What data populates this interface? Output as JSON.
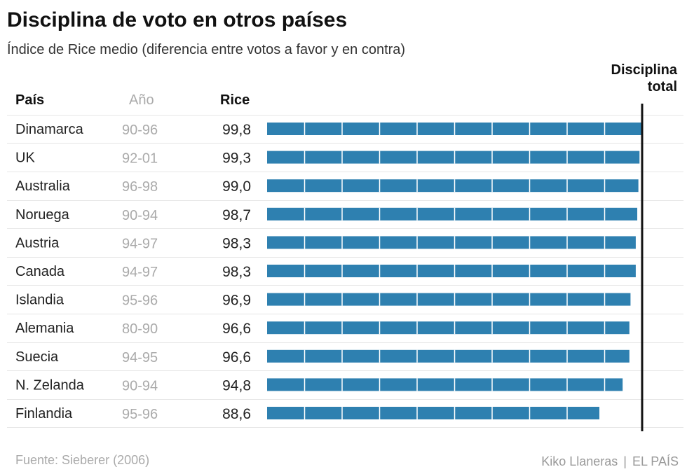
{
  "chart_data": {
    "type": "bar",
    "title": "Disciplina de voto en otros países",
    "subtitle": "Índice de Rice medio (diferencia entre votos a favor y en contra)",
    "columns": {
      "country": "País",
      "year": "Año",
      "value": "Rice"
    },
    "rows": [
      {
        "country": "Dinamarca",
        "year": "90-96",
        "value_label": "99,8",
        "value": 99.8
      },
      {
        "country": "UK",
        "year": "92-01",
        "value_label": "99,3",
        "value": 99.3
      },
      {
        "country": "Australia",
        "year": "96-98",
        "value_label": "99,0",
        "value": 99.0
      },
      {
        "country": "Noruega",
        "year": "90-94",
        "value_label": "98,7",
        "value": 98.7
      },
      {
        "country": "Austria",
        "year": "94-97",
        "value_label": "98,3",
        "value": 98.3
      },
      {
        "country": "Canada",
        "year": "94-97",
        "value_label": "98,3",
        "value": 98.3
      },
      {
        "country": "Islandia",
        "year": "95-96",
        "value_label": "96,9",
        "value": 96.9
      },
      {
        "country": "Alemania",
        "year": "80-90",
        "value_label": "96,6",
        "value": 96.6
      },
      {
        "country": "Suecia",
        "year": "94-95",
        "value_label": "96,6",
        "value": 96.6
      },
      {
        "country": "N. Zelanda",
        "year": "90-94",
        "value_label": "94,8",
        "value": 94.8
      },
      {
        "country": "Finlandia",
        "year": "95-96",
        "value_label": "88,6",
        "value": 88.6
      }
    ],
    "xlim": [
      0,
      100
    ],
    "segment_step": 10,
    "reference_line": {
      "value": 100,
      "label_line1": "Disciplina",
      "label_line2": "total"
    },
    "bar_color": "#2e80b0",
    "reference_color": "#111111"
  },
  "footer": {
    "source": "Fuente: Sieberer (2006)",
    "author": "Kiko Llaneras",
    "separator": "|",
    "publisher": "EL PAÍS"
  }
}
